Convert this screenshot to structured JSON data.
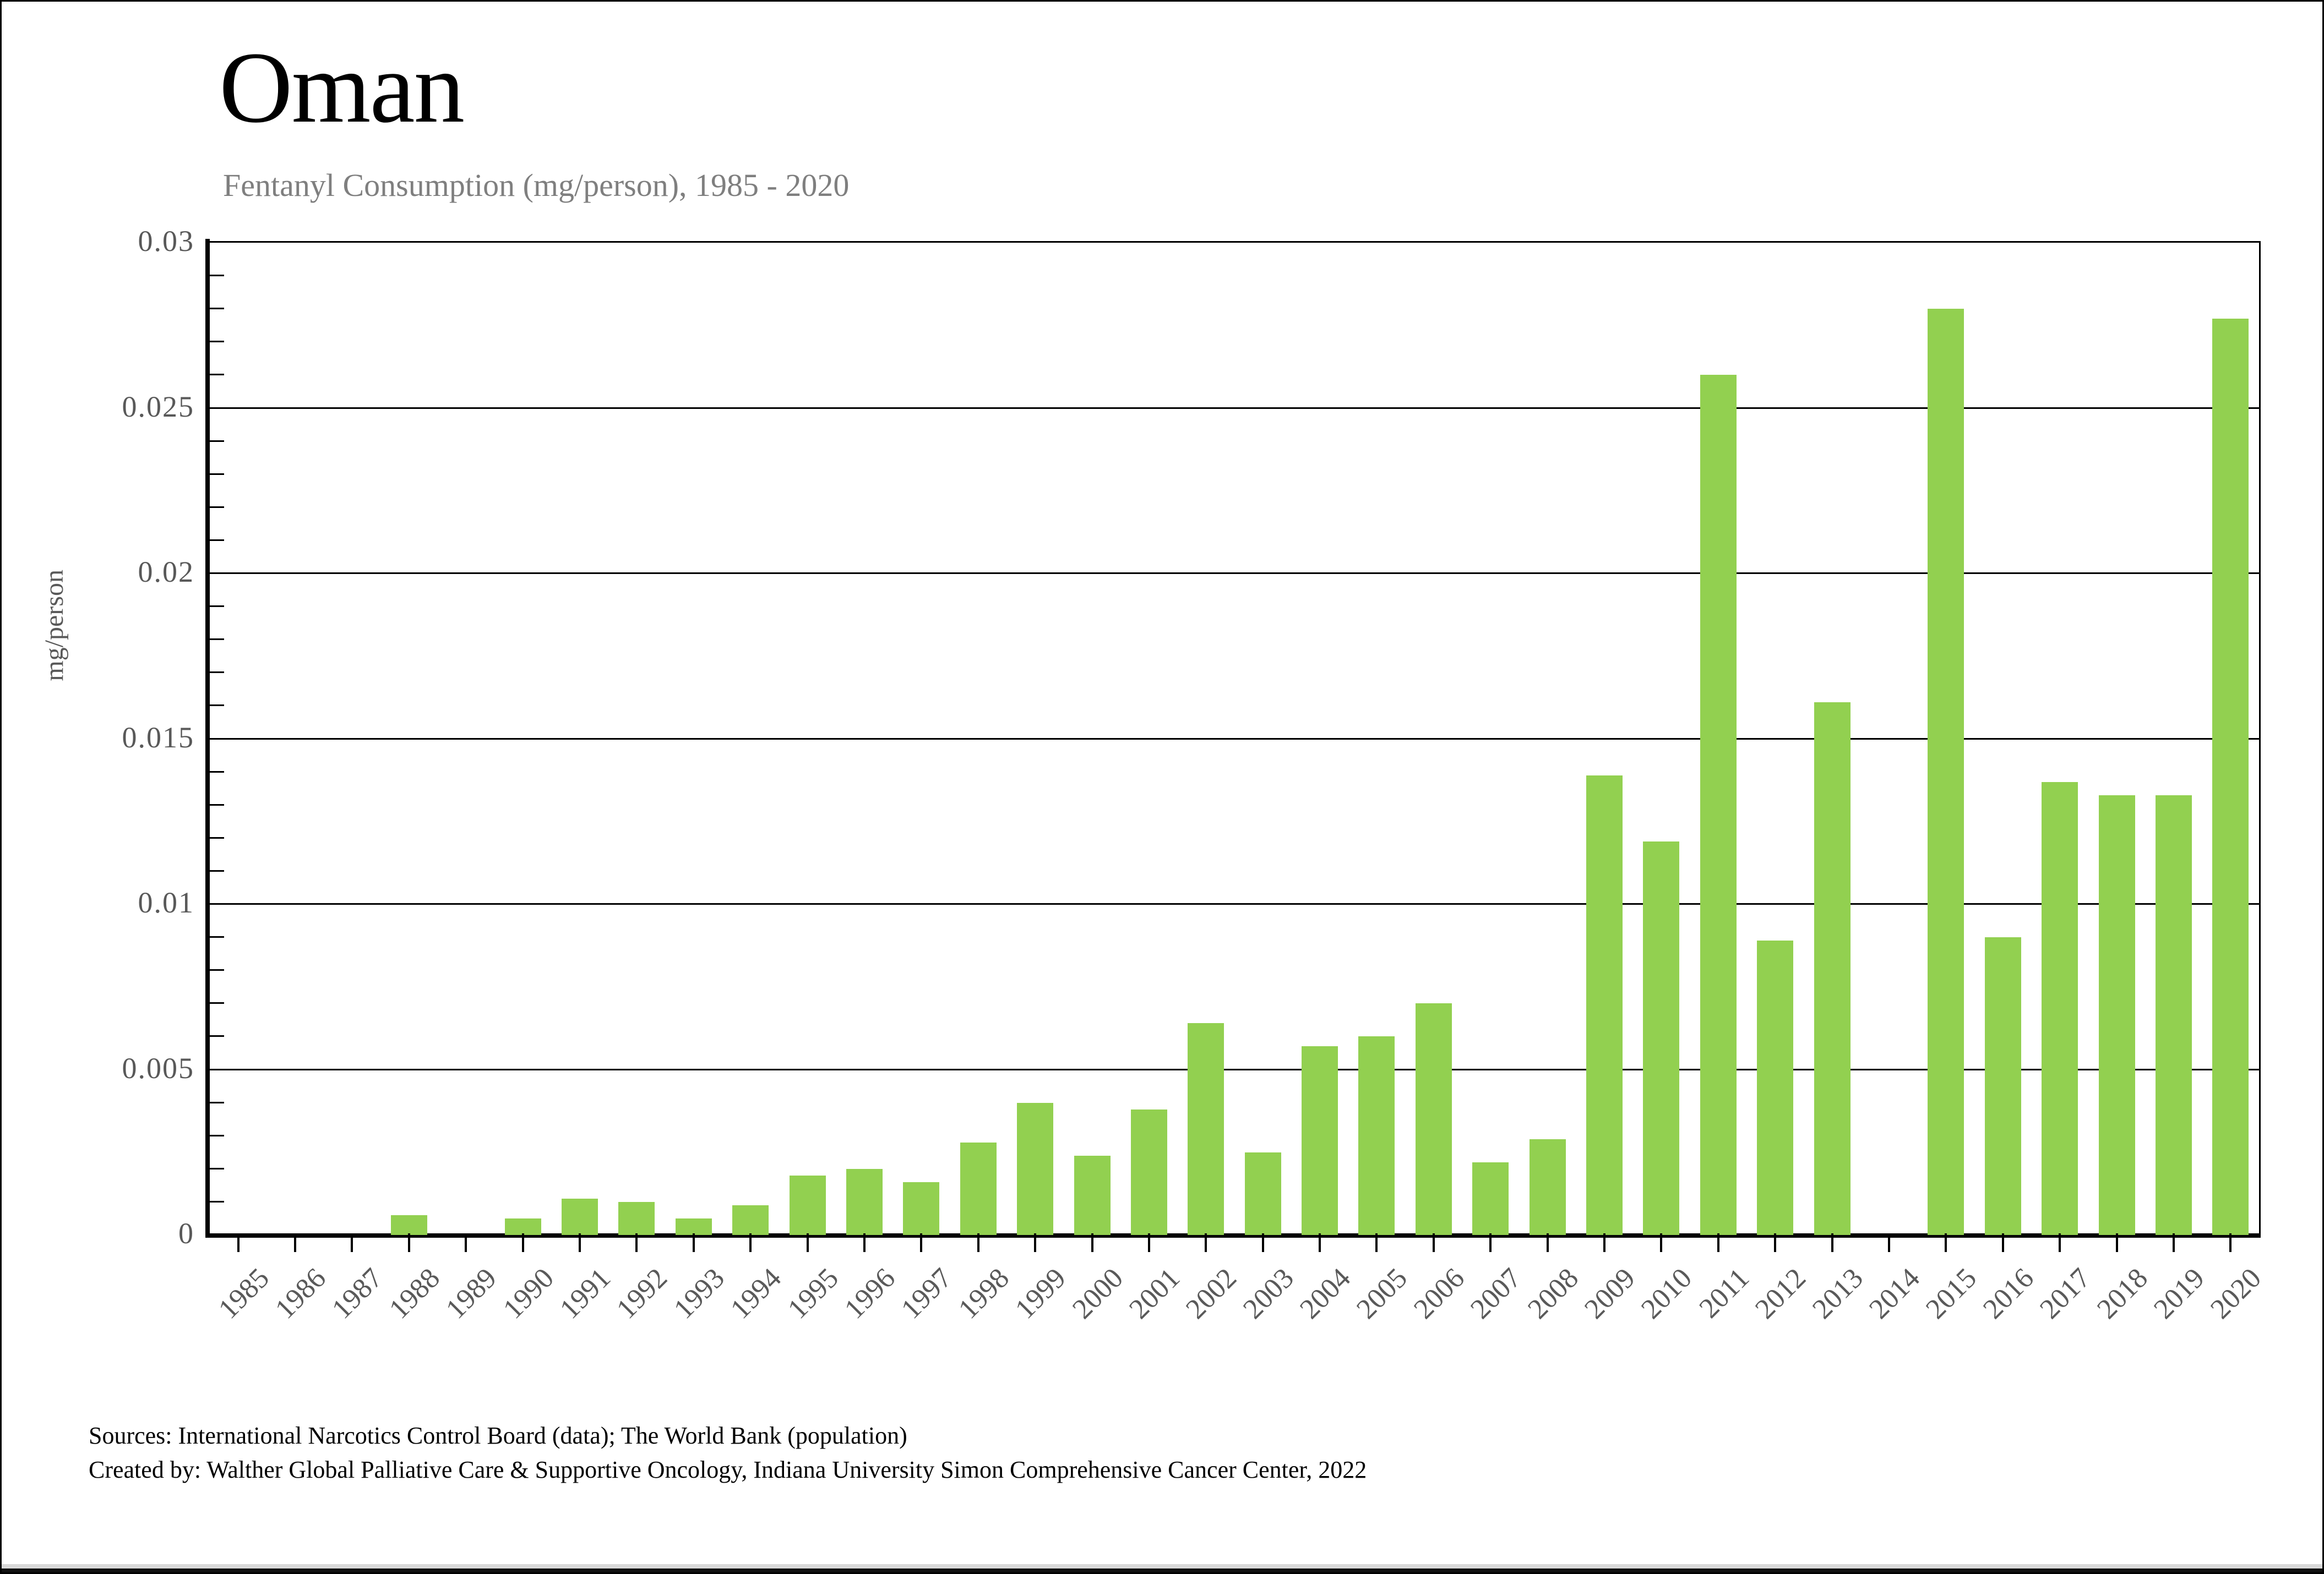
{
  "header": {
    "title": "Oman",
    "subtitle": "Fentanyl Consumption (mg/person), 1985 - 2020"
  },
  "footer": {
    "source_line1": "Sources: International Narcotics Control Board (data); The World Bank (population)",
    "source_line2": "Created by: Walther Global Palliative Care & Supportive Oncology, Indiana University Simon Comprehensive Cancer Center, 2022"
  },
  "colors": {
    "bar": "#92d050",
    "axis": "#000000",
    "tick_label": "#595959",
    "subtitle": "#7f7f7f"
  },
  "chart_data": {
    "type": "bar",
    "title": "Oman",
    "subtitle": "Fentanyl Consumption (mg/person), 1985 - 2020",
    "xlabel": "",
    "ylabel": "mg/person",
    "ylim": [
      0,
      0.03
    ],
    "grid": true,
    "legend_position": "none",
    "categories": [
      "1985",
      "1986",
      "1987",
      "1988",
      "1989",
      "1990",
      "1991",
      "1992",
      "1993",
      "1994",
      "1995",
      "1996",
      "1997",
      "1998",
      "1999",
      "2000",
      "2001",
      "2002",
      "2003",
      "2004",
      "2005",
      "2006",
      "2007",
      "2008",
      "2009",
      "2010",
      "2011",
      "2012",
      "2013",
      "2014",
      "2015",
      "2016",
      "2017",
      "2018",
      "2019",
      "2020"
    ],
    "values": [
      0,
      0,
      0,
      0.0006,
      0,
      0.0005,
      0.0011,
      0.001,
      0.0005,
      0.0009,
      0.0018,
      0.002,
      0.0016,
      0.0028,
      0.004,
      0.0024,
      0.0038,
      0.0064,
      0.0025,
      0.0057,
      0.006,
      0.007,
      0.0022,
      0.0029,
      0.0139,
      0.0119,
      0.026,
      0.0089,
      0.0161,
      0,
      0.028,
      0.009,
      0.0137,
      0.0133,
      0.0133,
      0.0277
    ],
    "yticks": {
      "values": [
        0,
        0.005,
        0.01,
        0.015,
        0.02,
        0.025,
        0.03
      ],
      "labels": [
        "0",
        "0.005",
        "0.01",
        "0.015",
        "0.02",
        "0.025",
        "0.03"
      ]
    },
    "minor_ytick_step": 0.001
  }
}
